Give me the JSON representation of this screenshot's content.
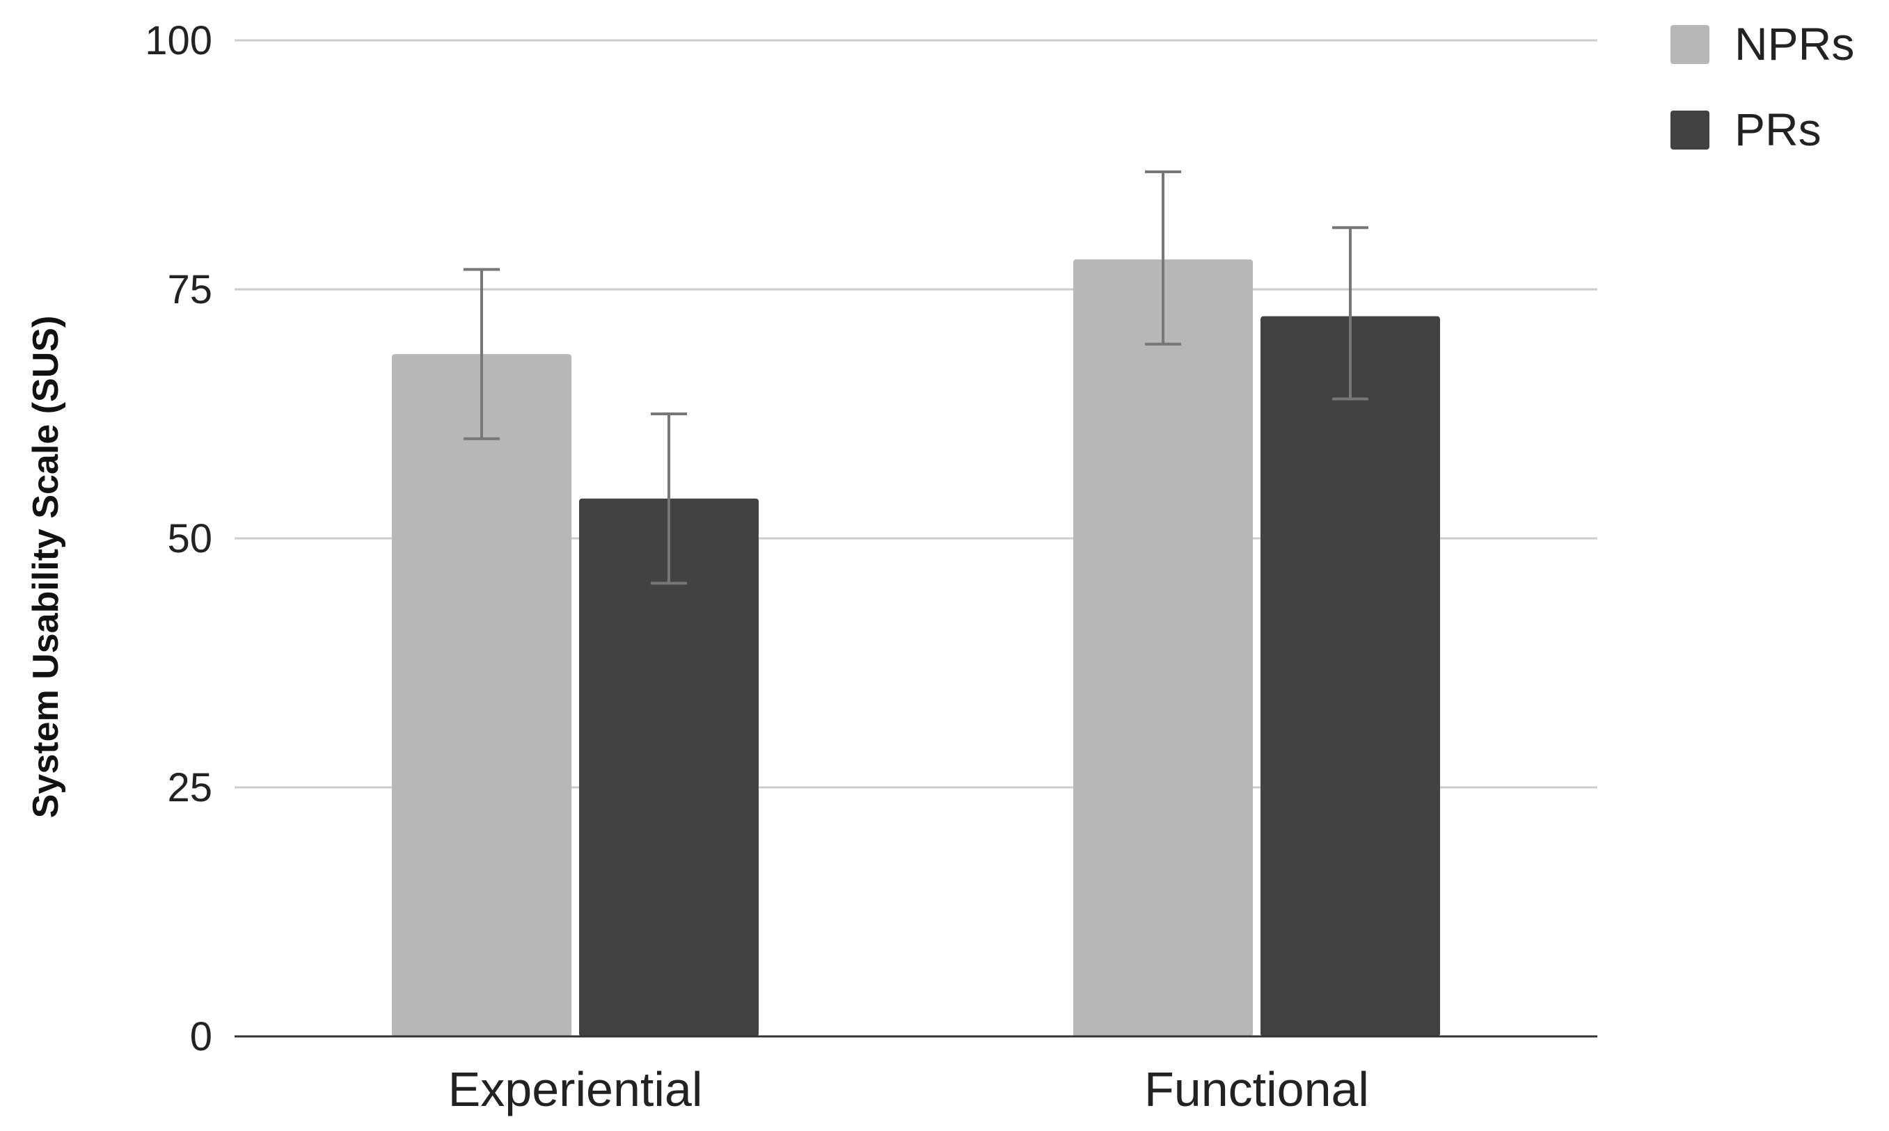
{
  "chart_data": {
    "type": "bar",
    "title": "",
    "xlabel": "",
    "ylabel": "System Usability Scale (SUS)",
    "ylim": [
      0,
      100
    ],
    "yticks": [
      0,
      25,
      50,
      75,
      100
    ],
    "categories": [
      "Experiential",
      "Functional"
    ],
    "series": [
      {
        "name": "NPRs",
        "color": "#b7b7b7",
        "values": [
          68.5,
          78
        ],
        "error": [
          [
            60,
            77
          ],
          [
            69.5,
            86.8
          ]
        ]
      },
      {
        "name": "PRs",
        "color": "#424242",
        "values": [
          54,
          72.3
        ],
        "error": [
          [
            45.5,
            62.5
          ],
          [
            64,
            81.2
          ]
        ]
      }
    ],
    "grid": true,
    "legend_position": "top-right"
  }
}
